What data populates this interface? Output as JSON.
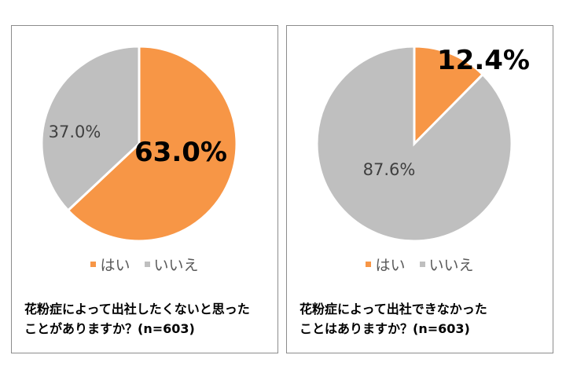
{
  "chart_data": [
    {
      "type": "pie",
      "categories": [
        "はい",
        "いいえ"
      ],
      "values": [
        63.0,
        37.0
      ],
      "data_labels": [
        "63.0%",
        "37.0%"
      ],
      "colors": [
        "#F79646",
        "#BFBFBF"
      ],
      "legend": [
        "はい",
        "いいえ"
      ],
      "legend_position": "bottom",
      "caption_lines": [
        "花粉症によって出社したくないと思った",
        "ことがありますか？(n=603)"
      ]
    },
    {
      "type": "pie",
      "categories": [
        "はい",
        "いいえ"
      ],
      "values": [
        12.4,
        87.6
      ],
      "data_labels": [
        "12.4%",
        "87.6%"
      ],
      "colors": [
        "#F79646",
        "#BFBFBF"
      ],
      "legend": [
        "はい",
        "いいえ"
      ],
      "legend_position": "bottom",
      "caption_lines": [
        "花粉症によって出社できなかった",
        "ことはありますか？(n=603)"
      ]
    }
  ]
}
